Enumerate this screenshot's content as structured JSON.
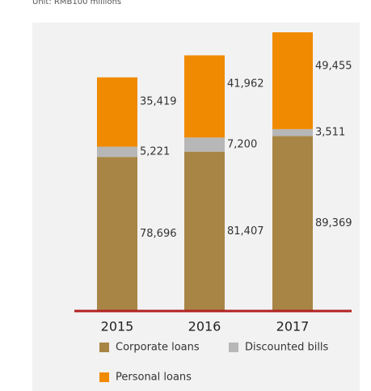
{
  "chart_data": {
    "type": "stacked_bar",
    "subtitle": "Unit: RMB100 millions",
    "categories": [
      "2015",
      "2016",
      "2017"
    ],
    "series": [
      {
        "name": "Corporate loans",
        "color": "#a88545",
        "values": [
          78696,
          81407,
          89369
        ],
        "value_labels": [
          "78,696",
          "81,407",
          "89,369"
        ]
      },
      {
        "name": "Discounted bills",
        "color": "#b7b7b7",
        "values": [
          5221,
          7200,
          3511
        ],
        "value_labels": [
          "5,221",
          "7,200",
          "3,511"
        ]
      },
      {
        "name": "Personal loans",
        "color": "#f08a00",
        "values": [
          35419,
          41962,
          49455
        ],
        "value_labels": [
          "35,419",
          "41,962",
          "49,455"
        ]
      }
    ]
  }
}
